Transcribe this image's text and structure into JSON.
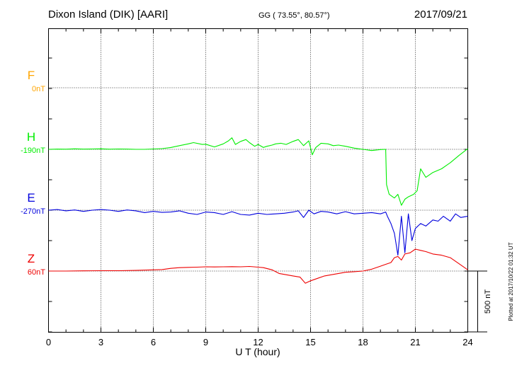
{
  "header": {
    "station": "Dixon Island (DIK)  [AARI]",
    "coords": "GG ( 73.55°,  80.57°)",
    "date": "2017/09/21"
  },
  "footer": {
    "plotted": "Plotted at 2017/10/22 01:32 UT"
  },
  "colors": {
    "F": "#ffa500",
    "H": "#00ee00",
    "E": "#0000dd",
    "Z": "#ee0000"
  },
  "chart_data": {
    "type": "line",
    "xlabel": "U T (hour)",
    "xlim": [
      0,
      24
    ],
    "xticks": [
      0,
      3,
      6,
      9,
      12,
      15,
      18,
      21,
      24
    ],
    "tick_labels": [
      "0",
      "3",
      "6",
      "9",
      "12",
      "15",
      "18",
      "21",
      "24"
    ],
    "scale_bar": {
      "value": 500,
      "label": "500 nT"
    },
    "channel_labels": [
      {
        "key": "F",
        "name": "F",
        "baseline": "0nT"
      },
      {
        "key": "H",
        "name": "H",
        "baseline": "-190nT"
      },
      {
        "key": "E",
        "name": "E",
        "baseline": "-270nT"
      },
      {
        "key": "Z",
        "name": "Z",
        "baseline": "60nT"
      }
    ],
    "series": [
      {
        "name": "H",
        "unit": "nT",
        "baseline": -190,
        "x": [
          0,
          0.5,
          1,
          1.5,
          2,
          2.5,
          3,
          3.5,
          4,
          4.5,
          5,
          5.5,
          6,
          6.5,
          7,
          7.5,
          8,
          8.3,
          8.8,
          9,
          9.5,
          10,
          10.3,
          10.5,
          10.7,
          11,
          11.3,
          11.5,
          11.8,
          12,
          12.3,
          12.5,
          12.8,
          13,
          13.3,
          13.6,
          14,
          14.3,
          14.6,
          14.9,
          15.1,
          15.3,
          15.6,
          16,
          16.3,
          16.6,
          17,
          17.5,
          18,
          18.5,
          19,
          19.3,
          19.35,
          19.5,
          19.8,
          20,
          20.2,
          20.4,
          20.6,
          20.9,
          21.1,
          21.3,
          21.6,
          22,
          22.5,
          23,
          23.5,
          24
        ],
        "values": [
          -190,
          -188,
          -189,
          -186,
          -188,
          -187,
          -186,
          -189,
          -187,
          -188,
          -190,
          -190,
          -187,
          -184,
          -175,
          -160,
          -145,
          -135,
          -150,
          -148,
          -170,
          -145,
          -120,
          -95,
          -150,
          -125,
          -110,
          -135,
          -165,
          -150,
          -175,
          -165,
          -155,
          -145,
          -140,
          -150,
          -125,
          -110,
          -160,
          -120,
          -235,
          -175,
          -140,
          -145,
          -160,
          -155,
          -165,
          -180,
          -190,
          -200,
          -192,
          -190,
          -480,
          -560,
          -590,
          -560,
          -650,
          -600,
          -580,
          -560,
          -530,
          -350,
          -420,
          -380,
          -350,
          -300,
          -240,
          -185
        ]
      },
      {
        "name": "E",
        "unit": "nT",
        "baseline": -270,
        "x": [
          0,
          0.5,
          1,
          1.5,
          2,
          2.5,
          3,
          3.5,
          4,
          4.5,
          5,
          5.5,
          6,
          6.5,
          7,
          7.5,
          8,
          8.5,
          9,
          9.5,
          10,
          10.5,
          11,
          11.5,
          12,
          12.5,
          13,
          13.5,
          14,
          14.3,
          14.6,
          14.9,
          15.2,
          15.6,
          16,
          16.5,
          17,
          17.5,
          18,
          18.5,
          19,
          19.3,
          19.4,
          19.6,
          19.8,
          20,
          20.2,
          20.4,
          20.6,
          20.8,
          21,
          21.3,
          21.6,
          22,
          22.3,
          22.6,
          23,
          23.3,
          23.6,
          24
        ],
        "values": [
          -270,
          -265,
          -275,
          -268,
          -280,
          -270,
          -265,
          -270,
          -280,
          -268,
          -275,
          -290,
          -280,
          -288,
          -285,
          -275,
          -295,
          -305,
          -285,
          -290,
          -305,
          -282,
          -305,
          -310,
          -295,
          -305,
          -300,
          -295,
          -285,
          -275,
          -330,
          -270,
          -300,
          -280,
          -285,
          -300,
          -282,
          -300,
          -295,
          -290,
          -300,
          -285,
          -320,
          -380,
          -460,
          -640,
          -320,
          -620,
          -300,
          -520,
          -420,
          -380,
          -400,
          -350,
          -360,
          -320,
          -360,
          -300,
          -330,
          -320
        ]
      },
      {
        "name": "Z",
        "unit": "nT",
        "baseline": 60,
        "x": [
          0,
          1,
          2,
          3,
          4,
          5,
          6,
          6.5,
          7,
          7.5,
          8,
          8.5,
          9,
          9.5,
          10,
          10.5,
          11,
          11.5,
          12,
          12.3,
          12.8,
          13.2,
          13.6,
          14,
          14.4,
          14.7,
          15,
          15.4,
          15.8,
          16.2,
          16.6,
          17,
          17.5,
          18,
          18.5,
          19,
          19.3,
          19.6,
          19.8,
          20,
          20.2,
          20.4,
          20.7,
          21,
          21.3,
          21.6,
          22,
          22.5,
          23,
          23.5,
          24
        ],
        "values": [
          60,
          60,
          62,
          63,
          63,
          65,
          70,
          72,
          82,
          88,
          90,
          92,
          95,
          94,
          95,
          96,
          95,
          98,
          92,
          88,
          70,
          40,
          30,
          20,
          10,
          -40,
          -20,
          0,
          20,
          30,
          40,
          50,
          55,
          60,
          75,
          100,
          115,
          130,
          170,
          180,
          150,
          200,
          210,
          240,
          230,
          220,
          200,
          190,
          170,
          120,
          70
        ]
      }
    ]
  }
}
